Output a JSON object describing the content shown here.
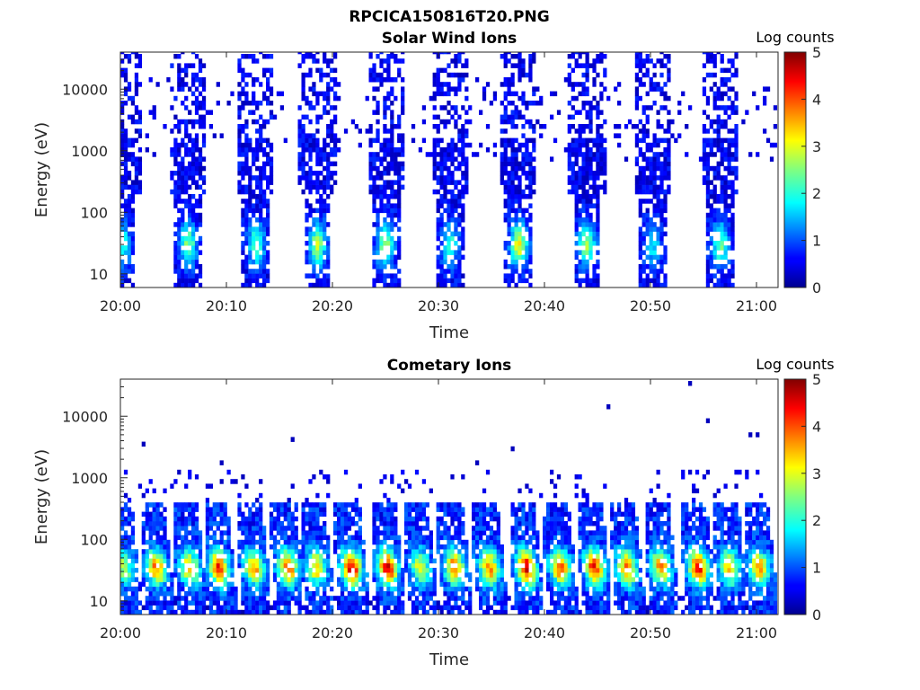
{
  "figure_title": "RPCICA150816T20.PNG",
  "chart_data": [
    {
      "type": "heatmap",
      "title": "Solar Wind Ions",
      "xlabel": "Time",
      "ylabel": "Energy (eV)",
      "y_scale": "log",
      "ylim": [
        6,
        40000
      ],
      "xlim": [
        "20:00",
        "21:02"
      ],
      "x_ticks": [
        "20:00",
        "20:10",
        "20:20",
        "20:30",
        "20:40",
        "20:50",
        "21:00"
      ],
      "y_ticks": [
        "10",
        "100",
        "1000",
        "10000"
      ],
      "colorbar": {
        "label": "Log counts",
        "range": [
          0,
          5
        ],
        "ticks": [
          "0",
          "1",
          "2",
          "3",
          "4",
          "5"
        ],
        "colormap": "jet"
      },
      "grid": false,
      "bursts_minute": [
        0.2,
        6.4,
        12.8,
        18.6,
        25.0,
        31.1,
        37.6,
        44.0,
        50.2,
        56.6
      ],
      "burst_peak_energy_eV": 30,
      "burst_peak_log_counts": [
        1.5,
        2.0,
        1.8,
        2.2,
        2.2,
        1.6,
        2.5,
        2.1,
        1.2,
        1.8
      ]
    },
    {
      "type": "heatmap",
      "title": "Cometary Ions",
      "xlabel": "Time",
      "ylabel": "Energy (eV)",
      "y_scale": "log",
      "ylim": [
        6,
        40000
      ],
      "xlim": [
        "20:00",
        "21:02"
      ],
      "x_ticks": [
        "20:00",
        "20:10",
        "20:20",
        "20:30",
        "20:40",
        "20:50",
        "21:00"
      ],
      "y_ticks": [
        "10",
        "100",
        "1000",
        "10000"
      ],
      "colorbar": {
        "label": "Log counts",
        "range": [
          0,
          5
        ],
        "ticks": [
          "0",
          "1",
          "2",
          "3",
          "4",
          "5"
        ],
        "colormap": "jet"
      },
      "grid": false,
      "bursts_minute": [
        0.3,
        3.4,
        6.5,
        9.3,
        12.6,
        15.8,
        18.5,
        21.8,
        25.2,
        28.3,
        31.5,
        34.8,
        38.3,
        41.5,
        44.7,
        47.8,
        51.0,
        54.5,
        57.5,
        60.3
      ],
      "burst_peak_energy_eV": 35,
      "burst_peak_log_counts": [
        2.0,
        3.0,
        2.6,
        3.4,
        2.8,
        3.2,
        2.6,
        3.9,
        3.7,
        2.2,
        3.1,
        3.0,
        3.8,
        3.2,
        3.5,
        3.0,
        2.8,
        3.6,
        2.6,
        2.8
      ]
    }
  ]
}
